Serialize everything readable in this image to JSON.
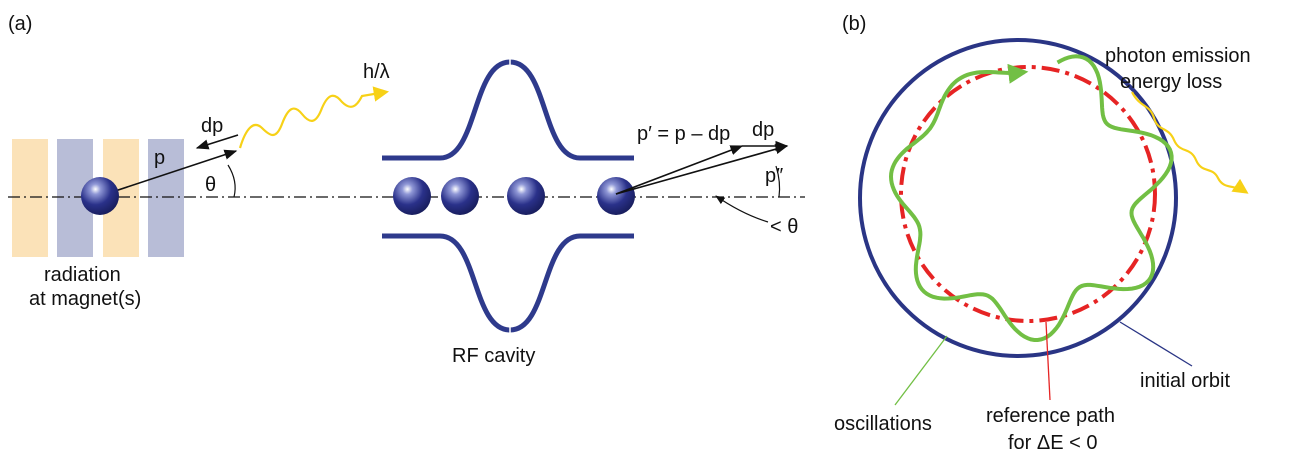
{
  "panel_a": {
    "tag": "(a)",
    "photon_label": "h/λ",
    "dp_left": "dp",
    "p_left": "p",
    "theta": "θ",
    "magnet_caption_1": "radiation",
    "magnet_caption_2": "at magnet(s)",
    "cavity_caption": "RF cavity",
    "p_prime_eq": "p′ = p – dp",
    "dp_right": "dp",
    "p_double_prime": "p″",
    "less_theta": "< θ"
  },
  "panel_b": {
    "tag": "(b)",
    "photon_1": "photon emission",
    "photon_2": "energy loss",
    "initial_orbit": "initial orbit",
    "oscillations": "oscillations",
    "reference_1": "reference path",
    "reference_2": "for ΔE < 0"
  },
  "colors": {
    "magnet_orange": "#fbe2b8",
    "magnet_blue": "#b8bdd7",
    "cavity_blue": "#2e3a8c",
    "particle": "#2a318a",
    "photon_yellow": "#f7d117",
    "orbit_blue": "#2a3585",
    "reference_red": "#e62424",
    "oscillation_green": "#72bf44"
  }
}
